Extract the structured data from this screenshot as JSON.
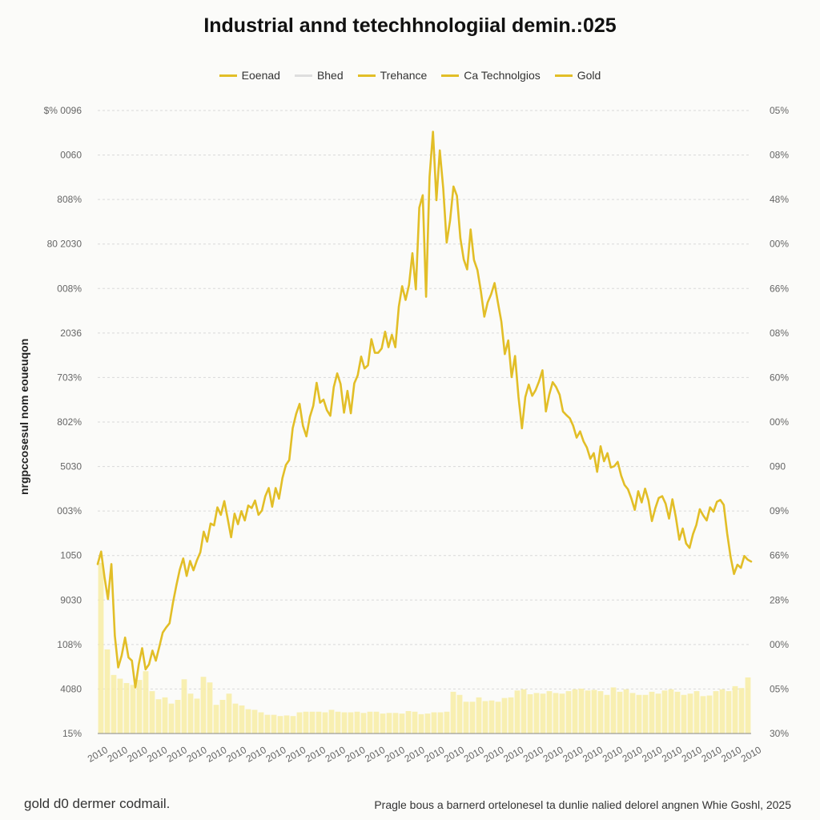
{
  "chart_data": {
    "type": "line",
    "title": "Industrial annd tetechhnologiial demin.:025",
    "ylabel": "nrgpccosesul nom eoueuqon",
    "legend": {
      "position": "top",
      "entries": [
        {
          "name": "Eoenad",
          "color": "#e2be27"
        },
        {
          "name": "Bhed",
          "color": "#dedede"
        },
        {
          "name": "Trehance",
          "color": "#e2be27"
        },
        {
          "name": "Ca Technolgios",
          "color": "#e2be27"
        },
        {
          "name": "Gold",
          "color": "#e2be27"
        }
      ]
    },
    "left_ticks": [
      "$% 0096",
      "0060",
      "808%",
      "80  2030",
      "008%",
      "2036",
      "703%",
      "802%",
      "5030",
      "003%",
      "1050",
      "9030",
      "108%",
      "4080",
      "15%"
    ],
    "right_ticks": [
      "05%",
      "08%",
      "48%",
      "00%",
      "66%",
      "08%",
      "60%",
      "00%",
      "090",
      "09%",
      "66%",
      "28%",
      "00%",
      "05%",
      "30%"
    ],
    "x_tick_labels": [
      "2010",
      "2010",
      "2010",
      "2010",
      "2010",
      "2010",
      "2010",
      "2010",
      "2010",
      "2010",
      "2010",
      "2010",
      "2010",
      "2010",
      "2010",
      "2010",
      "2010",
      "2010",
      "2010",
      "2010",
      "2010",
      "2010",
      "2010",
      "2010",
      "2010",
      "2010",
      "2010",
      "2010",
      "2010",
      "2010",
      "2010",
      "2010",
      "2010",
      "2010"
    ],
    "grid": true,
    "y_range": [
      0,
      100
    ],
    "series": [
      {
        "name": "Gold",
        "color": "#e2be27",
        "values": [
          27.2,
          29.2,
          25.1,
          21.6,
          27.2,
          15.7,
          10.6,
          12.5,
          15.4,
          12.2,
          11.7,
          7.4,
          11.1,
          13.7,
          10.3,
          11.1,
          13.3,
          11.7,
          13.9,
          16.2,
          17.0,
          17.7,
          21.0,
          23.8,
          26.3,
          28.1,
          25.3,
          27.7,
          26.2,
          27.8,
          29.1,
          32.4,
          30.8,
          33.7,
          33.4,
          36.3,
          35.1,
          37.3,
          34.5,
          31.5,
          35.3,
          33.6,
          35.7,
          34.2,
          36.6,
          36.2,
          37.4,
          35.1,
          35.8,
          38.1,
          39.4,
          36.4,
          39.4,
          37.7,
          41.0,
          43.1,
          43.9,
          49.0,
          51.3,
          52.9,
          49.4,
          47.7,
          50.8,
          52.6,
          56.3,
          53.1,
          53.6,
          51.9,
          51.0,
          55.6,
          57.8,
          56.1,
          51.5,
          55.0,
          51.4,
          56.2,
          57.5,
          60.5,
          58.6,
          59.1,
          63.3,
          61.1,
          61.1,
          61.8,
          64.5,
          62.0,
          64.0,
          62.0,
          68.5,
          71.8,
          69.6,
          72.0,
          77.1,
          71.3,
          84.4,
          86.4,
          70.1,
          89.3,
          96.6,
          85.6,
          93.6,
          87.5,
          78.8,
          82.3,
          87.8,
          86.3,
          79.5,
          76.1,
          74.5,
          80.9,
          76.0,
          74.4,
          71.0,
          66.9,
          69.2,
          70.5,
          72.3,
          69.1,
          66.1,
          60.9,
          63.1,
          57.2,
          60.6,
          54.0,
          49.0,
          54.0,
          56.0,
          54.2,
          55.1,
          56.5,
          58.3,
          51.7,
          54.4,
          56.4,
          55.6,
          54.4,
          51.7,
          51.1,
          50.6,
          49.4,
          47.5,
          48.5,
          46.9,
          45.9,
          44.1,
          45.0,
          42.0,
          46.1,
          43.7,
          45.0,
          42.7,
          42.9,
          43.6,
          41.4,
          39.9,
          39.2,
          37.7,
          35.9,
          38.9,
          37.1,
          39.3,
          37.4,
          34.1,
          36.2,
          37.8,
          38.1,
          36.9,
          34.5,
          37.6,
          34.7,
          31.1,
          32.9,
          30.5,
          29.8,
          32.0,
          33.5,
          36.0,
          35.0,
          34.2,
          36.3,
          35.6,
          37.2,
          37.5,
          36.7,
          32.1,
          28.3,
          25.6,
          27.1,
          26.6,
          28.5,
          27.9,
          27.6
        ]
      }
    ],
    "bars": [
      27.4,
      13.5,
      9.4,
      8.8,
      8.1,
      7.8,
      8.6,
      10.0,
      6.8,
      5.5,
      5.8,
      4.8,
      5.4,
      8.7,
      6.4,
      5.6,
      9.1,
      8.2,
      4.6,
      5.4,
      6.4,
      4.8,
      4.5,
      3.9,
      3.8,
      3.4,
      3.0,
      3.0,
      2.8,
      2.9,
      2.8,
      3.4,
      3.5,
      3.5,
      3.5,
      3.4,
      3.8,
      3.5,
      3.4,
      3.4,
      3.5,
      3.3,
      3.5,
      3.5,
      3.2,
      3.3,
      3.3,
      3.2,
      3.6,
      3.5,
      3.1,
      3.2,
      3.4,
      3.4,
      3.5,
      6.7,
      6.2,
      5.1,
      5.1,
      5.8,
      5.2,
      5.3,
      5.1,
      5.7,
      5.8,
      6.9,
      7.1,
      6.3,
      6.5,
      6.4,
      6.8,
      6.5,
      6.4,
      6.8,
      7.1,
      7.2,
      6.9,
      7.0,
      6.8,
      6.2,
      7.4,
      6.7,
      7.1,
      6.5,
      6.2,
      6.2,
      6.7,
      6.4,
      6.9,
      7.1,
      6.7,
      6.2,
      6.4,
      6.8,
      6.0,
      6.1,
      6.8,
      7.1,
      6.8,
      7.6,
      7.3,
      9.0
    ]
  },
  "footer": {
    "left": "gold d0 dermer codmail.",
    "right": "Pragle bous a barnerd ortelonesel ta dunlie nalied delorel angnen Whie Goshl, 2025"
  }
}
